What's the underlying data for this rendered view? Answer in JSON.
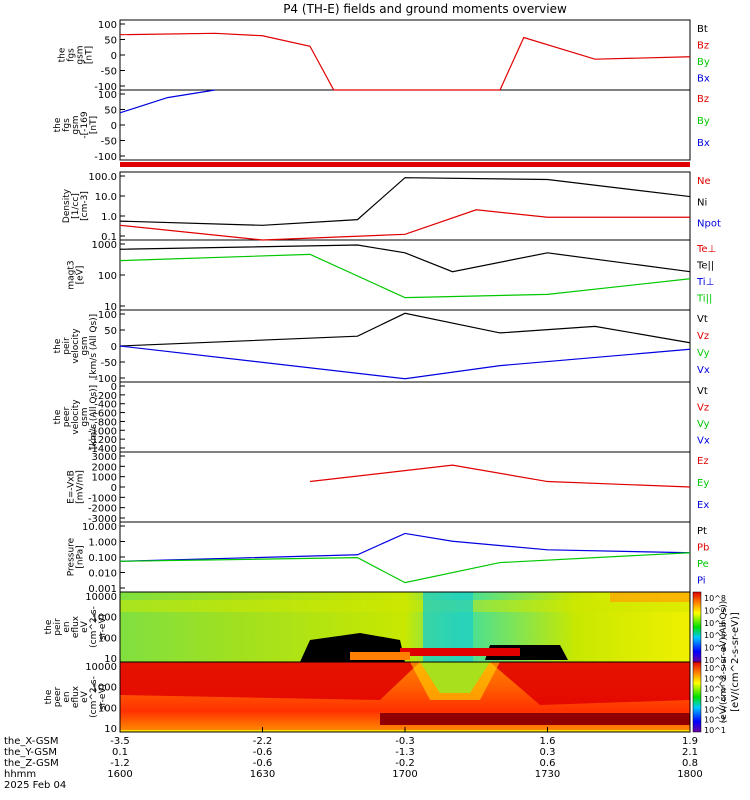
{
  "title": "P4 (TH-E) fields and ground moments overview",
  "colors": {
    "black": "#000000",
    "red": "#e00000",
    "green": "#00c800",
    "blue": "#0000e0",
    "axis": "#000000"
  },
  "panels": [
    {
      "id": "fgs_gsm",
      "ylabel": [
        "the",
        "fgs",
        "gsm",
        "[nT]"
      ],
      "ticks": [
        "100",
        "50",
        "0",
        "-50",
        "-100"
      ],
      "legend": [
        "Bt",
        "Bz",
        "By",
        "Bx"
      ],
      "legend_colors": [
        "black",
        "red",
        "green",
        "blue"
      ]
    },
    {
      "id": "fgs_gsm_zoom",
      "ylabel": [
        "the",
        "fgs",
        "gsm",
        "-[-169",
        "[nT]"
      ],
      "ticks": [
        "100",
        "50",
        "0",
        "-50",
        "-100"
      ],
      "legend": [
        "Bz",
        "By",
        "Bx"
      ],
      "legend_colors": [
        "red",
        "green",
        "blue"
      ]
    },
    {
      "id": "density",
      "ylabel": [
        "Density",
        "[1/cc]",
        "[cm-3]"
      ],
      "ticks": [
        "100.0",
        "10.0",
        "1.0",
        "0.1"
      ],
      "legend": [
        "Ne",
        "Ni",
        "Npot"
      ],
      "legend_colors": [
        "red",
        "black",
        "blue"
      ]
    },
    {
      "id": "temperature",
      "ylabel": [
        "magt3",
        "[eV]"
      ],
      "ticks": [
        "1000",
        "100",
        "10"
      ],
      "legend": [
        "Te⊥",
        "Te||",
        "Ti⊥",
        "Ti||"
      ],
      "legend_colors": [
        "red",
        "black",
        "blue",
        "green"
      ]
    },
    {
      "id": "peir_velocity",
      "ylabel": [
        "the",
        "peir",
        "velocity",
        "gsm",
        "[km/s (All Qs)]"
      ],
      "ticks": [
        "100",
        "50",
        "0",
        "-50",
        "-100"
      ],
      "legend": [
        "Vt",
        "Vz",
        "Vy",
        "Vx"
      ],
      "legend_colors": [
        "black",
        "red",
        "green",
        "blue"
      ]
    },
    {
      "id": "peer_velocity",
      "ylabel": [
        "the",
        "peer",
        "velocity",
        "gsm",
        "[km/s (All Qs)]"
      ],
      "ticks": [
        "0",
        "-200",
        "-400",
        "-600",
        "-800",
        "-1000",
        "-1200",
        "-1400"
      ],
      "legend": [
        "Vt",
        "Vz",
        "Vy",
        "Vx"
      ],
      "legend_colors": [
        "black",
        "red",
        "green",
        "blue"
      ]
    },
    {
      "id": "efield",
      "ylabel": [
        "E=-VxB",
        "[mV/m]"
      ],
      "ticks": [
        "3000",
        "2000",
        "1000",
        "0",
        "-1000",
        "-2000",
        "-3000"
      ],
      "legend": [
        "Ez",
        "Ey",
        "Ex"
      ],
      "legend_colors": [
        "red",
        "green",
        "blue"
      ]
    },
    {
      "id": "pressure",
      "ylabel": [
        "Pressure",
        "[nPa]"
      ],
      "ticks": [
        "10.000",
        "1.000",
        "0.100",
        "0.010",
        "0.001"
      ],
      "legend": [
        "Pt",
        "Pb",
        "Pe",
        "Pi"
      ],
      "legend_colors": [
        "black",
        "red",
        "green",
        "blue"
      ]
    },
    {
      "id": "peir_spectrogram",
      "ylabel": [
        "the",
        "peir",
        "en",
        "eflux",
        "eV",
        "(cm^2-s-",
        "sr-eV)"
      ],
      "ticks": [
        "10000",
        "1000",
        "100",
        "10"
      ]
    },
    {
      "id": "peer_spectrogram",
      "ylabel": [
        "the",
        "peer",
        "en",
        "eflux",
        "eV",
        "(cm^2-s-",
        "sr-eV)"
      ],
      "ticks": [
        "10000",
        "1000",
        "100",
        "10"
      ]
    }
  ],
  "colorbars": [
    {
      "ticks": [
        "10^8",
        "10^7",
        "10^6",
        "10^5",
        "10^4",
        "10^3"
      ],
      "label": "[eV/(cm^2-s-sr-eV)]",
      "label2": "(eV/(cm^2-s-sr-eV)(All Qs))"
    },
    {
      "ticks": [
        "10^7",
        "10^6",
        "10^5",
        "10^4",
        "10^3",
        "10^2",
        "10^1"
      ]
    }
  ],
  "xaxis": {
    "row_labels": [
      "the_X-GSM",
      "the_Y-GSM",
      "the_Z-GSM",
      "hhmm",
      "2025 Feb 04"
    ],
    "columns": [
      {
        "x": "-3.5",
        "y": "0.1",
        "z": "-1.2",
        "t": "1600"
      },
      {
        "x": "-2.2",
        "y": "-0.6",
        "z": "-0.6",
        "t": "1630"
      },
      {
        "x": "-0.3",
        "y": "-1.3",
        "z": "-0.2",
        "t": "1700"
      },
      {
        "x": "1.6",
        "y": "0.3",
        "z": "0.6",
        "t": "1730"
      },
      {
        "x": "1.9",
        "y": "2.1",
        "z": "0.8",
        "t": "1800"
      }
    ]
  },
  "chart_data": {
    "type": "line",
    "title": "P4 (TH-E) fields and ground moments overview",
    "x_label": "hhmm",
    "x_range": [
      "1600",
      "1800"
    ],
    "series": [
      {
        "panel": "fgs_gsm",
        "name": "Bz",
        "points": [
          [
            "1600",
            58
          ],
          [
            "1620",
            62
          ],
          [
            "1630",
            55
          ],
          [
            "1640",
            25
          ],
          [
            "1645",
            -100
          ],
          [
            "1720",
            -100
          ],
          [
            "1725",
            50
          ],
          [
            "1740",
            -12
          ],
          [
            "1800",
            -5
          ]
        ]
      },
      {
        "panel": "fgs_gsm_zoom",
        "name": "Bx",
        "points": [
          [
            "1600",
            25
          ],
          [
            "1610",
            75
          ],
          [
            "1620",
            100
          ]
        ]
      },
      {
        "panel": "density",
        "name": "Ni",
        "points": [
          [
            "1600",
            0.5
          ],
          [
            "1630",
            0.3
          ],
          [
            "1650",
            0.6
          ],
          [
            "1700",
            100
          ],
          [
            "1730",
            80
          ],
          [
            "1800",
            10
          ]
        ]
      },
      {
        "panel": "density",
        "name": "Ne",
        "points": [
          [
            "1600",
            0.3
          ],
          [
            "1630",
            0.05
          ],
          [
            "1700",
            0.1
          ],
          [
            "1715",
            2
          ],
          [
            "1730",
            0.8
          ],
          [
            "1800",
            0.8
          ]
        ]
      },
      {
        "panel": "temperature",
        "name": "Te||",
        "points": [
          [
            "1600",
            1100
          ],
          [
            "1650",
            1600
          ],
          [
            "1700",
            800
          ],
          [
            "1710",
            150
          ],
          [
            "1730",
            800
          ],
          [
            "1800",
            150
          ]
        ]
      },
      {
        "panel": "temperature",
        "name": "Ti||",
        "points": [
          [
            "1600",
            400
          ],
          [
            "1640",
            700
          ],
          [
            "1700",
            15
          ],
          [
            "1730",
            20
          ],
          [
            "1800",
            80
          ]
        ]
      },
      {
        "panel": "peir_velocity",
        "name": "Vt",
        "points": [
          [
            "1600",
            0
          ],
          [
            "1650",
            30
          ],
          [
            "1700",
            100
          ],
          [
            "1720",
            40
          ],
          [
            "1740",
            60
          ],
          [
            "1800",
            10
          ]
        ]
      },
      {
        "panel": "peir_velocity",
        "name": "Vx",
        "points": [
          [
            "1600",
            0
          ],
          [
            "1700",
            -100
          ],
          [
            "1720",
            -60
          ],
          [
            "1800",
            -10
          ]
        ]
      },
      {
        "panel": "efield",
        "name": "Ez",
        "points": [
          [
            "1640",
            500
          ],
          [
            "1710",
            2000
          ],
          [
            "1730",
            500
          ],
          [
            "1800",
            0
          ]
        ]
      },
      {
        "panel": "pressure",
        "name": "Pi",
        "points": [
          [
            "1600",
            0.06
          ],
          [
            "1650",
            0.15
          ],
          [
            "1700",
            3
          ],
          [
            "1710",
            1
          ],
          [
            "1730",
            0.3
          ],
          [
            "1800",
            0.2
          ]
        ]
      },
      {
        "panel": "pressure",
        "name": "Pe",
        "points": [
          [
            "1600",
            0.06
          ],
          [
            "1650",
            0.1
          ],
          [
            "1700",
            0.003
          ],
          [
            "1720",
            0.05
          ],
          [
            "1800",
            0.2
          ]
        ]
      }
    ]
  }
}
